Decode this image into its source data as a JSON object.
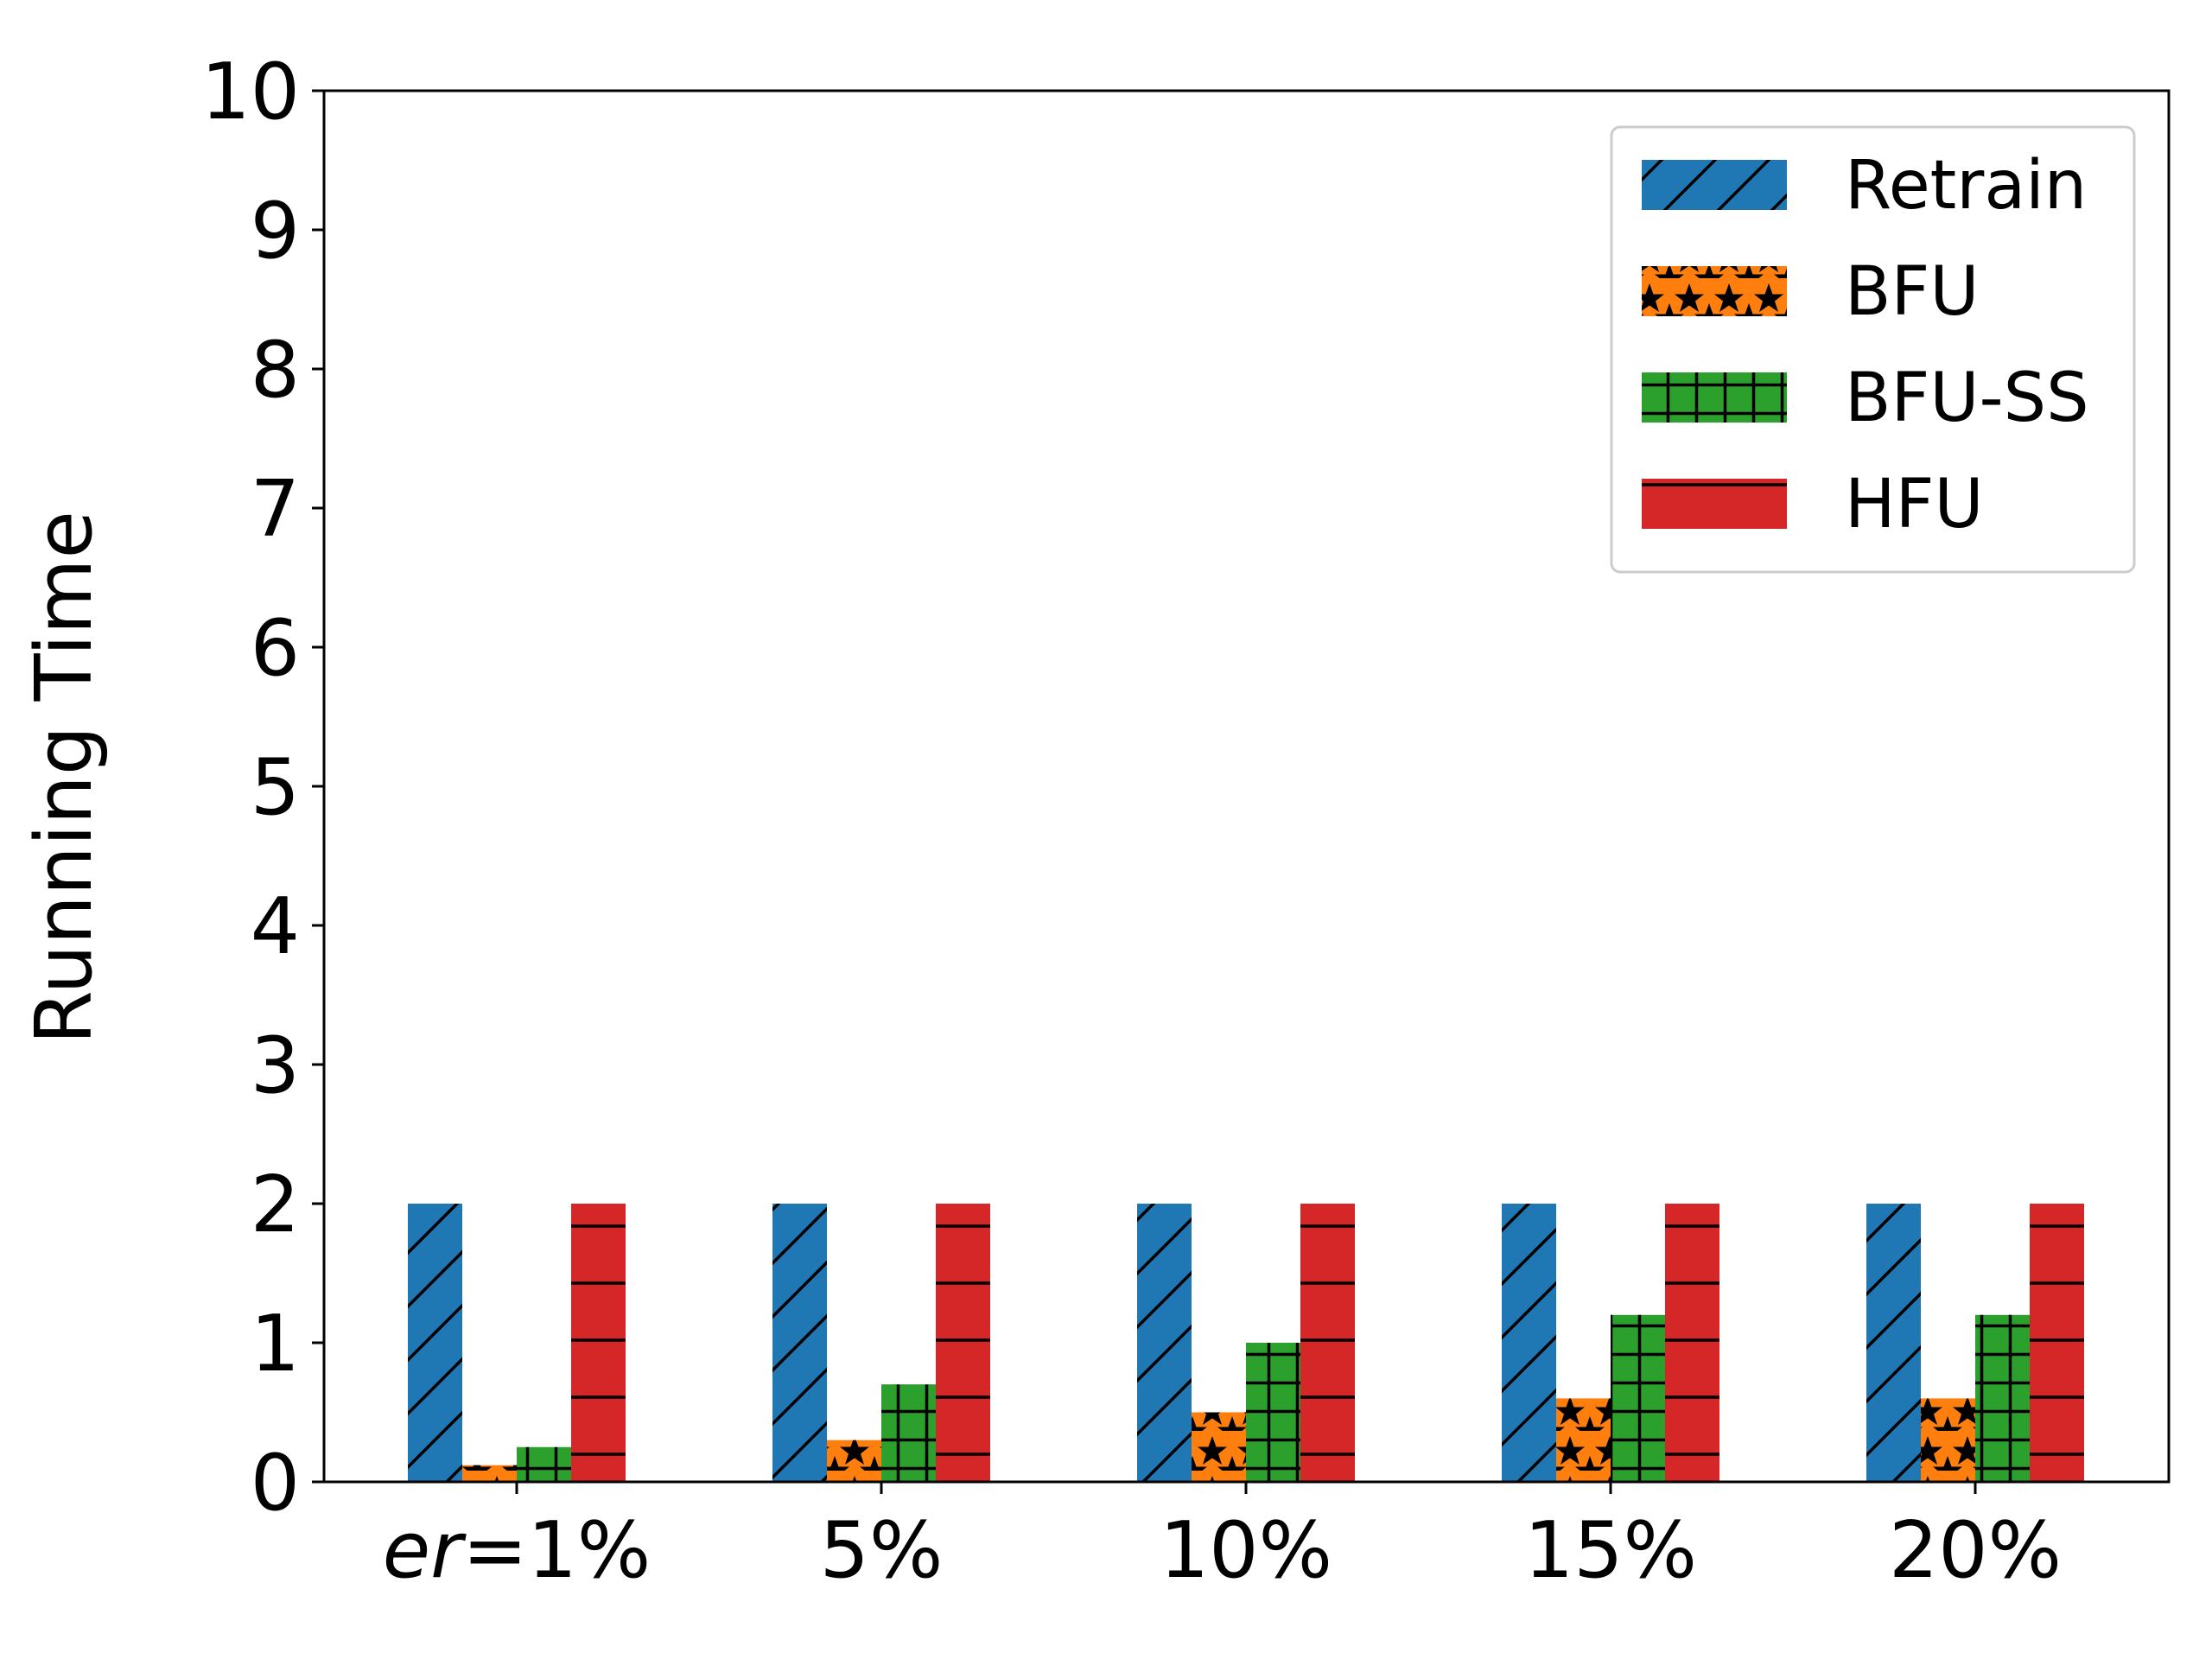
{
  "chart_data": {
    "type": "bar",
    "categories": [
      "er=1%",
      "5%",
      "10%",
      "15%",
      "20%"
    ],
    "category_display": [
      {
        "italic": "er",
        "rest": "=1%"
      },
      {
        "italic": "",
        "rest": "5%"
      },
      {
        "italic": "",
        "rest": "10%"
      },
      {
        "italic": "",
        "rest": "15%"
      },
      {
        "italic": "",
        "rest": "20%"
      }
    ],
    "series": [
      {
        "name": "Retrain",
        "values": [
          2.0,
          2.0,
          2.0,
          2.0,
          2.0
        ],
        "color": "#1f77b4",
        "hatch": "diagonal"
      },
      {
        "name": "BFU",
        "values": [
          0.12,
          0.3,
          0.5,
          0.6,
          0.6
        ],
        "color": "#ff7f0e",
        "hatch": "stars"
      },
      {
        "name": "BFU-SS",
        "values": [
          0.25,
          0.7,
          1.0,
          1.2,
          1.2
        ],
        "color": "#2ca02c",
        "hatch": "grid"
      },
      {
        "name": "HFU",
        "values": [
          2.0,
          2.0,
          2.0,
          2.0,
          2.0
        ],
        "color": "#d62728",
        "hatch": "horizontal"
      }
    ],
    "ylabel": "Running Time",
    "xlabel": "",
    "ylim": [
      0,
      10
    ],
    "yticks": [
      "0",
      "1",
      "2",
      "3",
      "4",
      "5",
      "6",
      "7",
      "8",
      "9",
      "10"
    ],
    "grid": false,
    "legend_position": "top-right"
  }
}
